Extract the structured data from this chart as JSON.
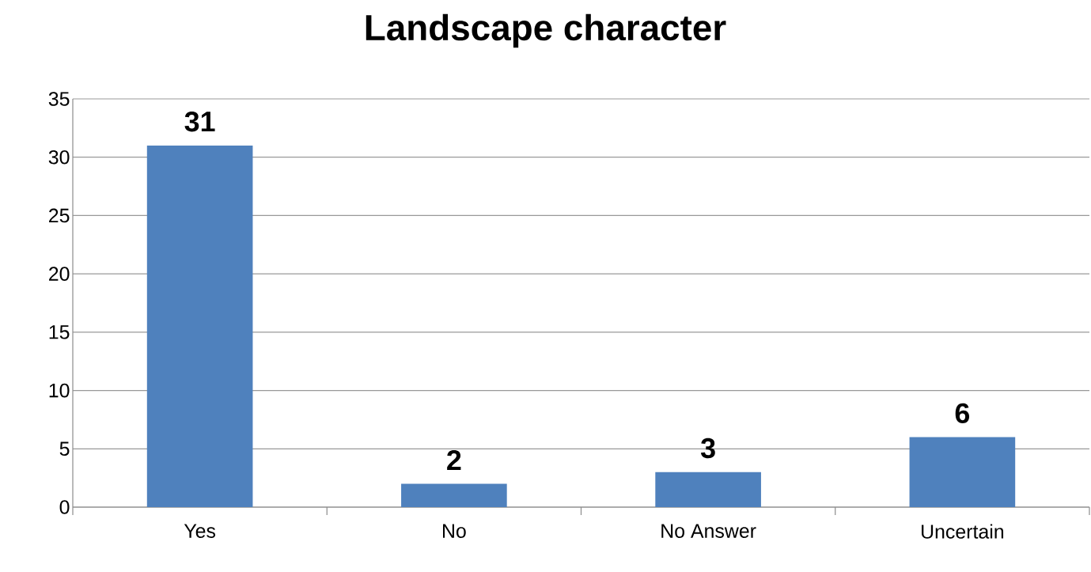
{
  "chart_data": {
    "type": "bar",
    "title": "Landscape character",
    "categories": [
      "Yes",
      "No",
      "No Answer",
      "Uncertain"
    ],
    "values": [
      31,
      2,
      3,
      6
    ],
    "color": "#4f81bd",
    "ylim": [
      0,
      35
    ],
    "yticks": [
      0,
      5,
      10,
      15,
      20,
      25,
      30,
      35
    ],
    "grid": "y",
    "data_labels": true
  }
}
